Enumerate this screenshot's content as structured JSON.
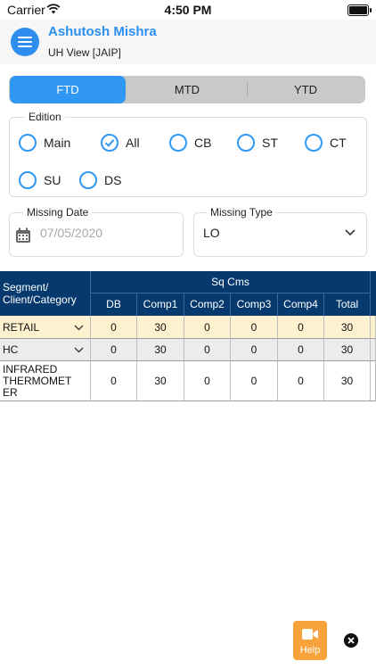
{
  "status_bar": {
    "carrier": "Carrier",
    "time": "4:50 PM"
  },
  "header": {
    "title": "Ashutosh Mishra",
    "subtitle": "UH View [JAIP]"
  },
  "tabs": [
    {
      "label": "FTD",
      "active": true
    },
    {
      "label": "MTD",
      "active": false
    },
    {
      "label": "YTD",
      "active": false
    }
  ],
  "edition": {
    "legend": "Edition",
    "options": [
      {
        "label": "Main",
        "selected": false
      },
      {
        "label": "All",
        "selected": true
      },
      {
        "label": "CB",
        "selected": false
      },
      {
        "label": "ST",
        "selected": false
      },
      {
        "label": "CT",
        "selected": false
      },
      {
        "label": "SU",
        "selected": false
      },
      {
        "label": "DS",
        "selected": false
      }
    ]
  },
  "missing_date": {
    "legend": "Missing Date",
    "value": "07/05/2020"
  },
  "missing_type": {
    "legend": "Missing Type",
    "value": "LO"
  },
  "table": {
    "segment_header": "Segment/\nClient/Category",
    "group_header": "Sq Cms",
    "columns": [
      "DB",
      "Comp1",
      "Comp2",
      "Comp3",
      "Comp4",
      "Total"
    ],
    "rows": [
      {
        "label": "RETAIL",
        "values": [
          "0",
          "30",
          "0",
          "0",
          "0",
          "30"
        ],
        "expandable": true,
        "highlight": true
      },
      {
        "label": "HC",
        "values": [
          "0",
          "30",
          "0",
          "0",
          "0",
          "30"
        ],
        "expandable": true,
        "highlight": false
      },
      {
        "label": "INFRARED\nTHERMOMET\nER",
        "values": [
          "0",
          "30",
          "0",
          "0",
          "0",
          "30"
        ],
        "expandable": false,
        "highlight": false
      }
    ]
  },
  "help": {
    "label": "Help"
  },
  "colors": {
    "accent": "#3097f2",
    "table_header": "#063a6e",
    "row_highlight": "#fdf1cf",
    "row_alt": "#ececec",
    "help_button": "#f7a23a"
  },
  "icons": [
    "wifi-icon",
    "battery-icon",
    "menu-icon",
    "check-icon",
    "calendar-icon",
    "chevron-down-icon",
    "video-camera-icon",
    "close-icon"
  ]
}
